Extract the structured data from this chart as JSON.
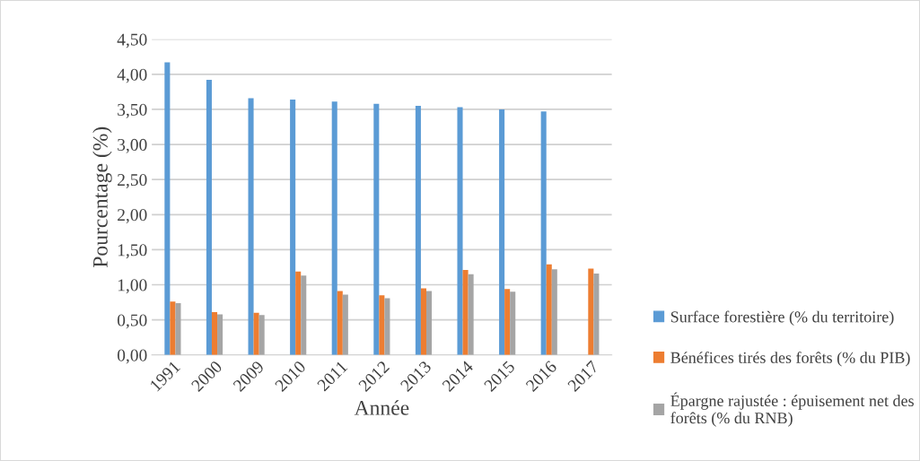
{
  "chart_data": {
    "type": "bar",
    "xlabel": "Année",
    "ylabel": "Pourcentage (%)",
    "categories": [
      "1991",
      "2000",
      "2009",
      "2010",
      "2011",
      "2012",
      "2013",
      "2014",
      "2015",
      "2016",
      "2017"
    ],
    "series": [
      {
        "name": "Surface forestière (% du territoire)",
        "color": "#5b9bd5",
        "values": [
          4.17,
          3.92,
          3.66,
          3.64,
          3.61,
          3.58,
          3.55,
          3.53,
          3.5,
          3.47,
          0
        ]
      },
      {
        "name": "Bénéfices tirés des forêts (% du PIB)",
        "color": "#ed7d31",
        "values": [
          0.76,
          0.61,
          0.6,
          1.19,
          0.91,
          0.85,
          0.95,
          1.21,
          0.94,
          1.29,
          1.23
        ]
      },
      {
        "name": "Épargne rajustée : épuisement net des forêts (% du RNB)",
        "color": "#a5a5a5",
        "values": [
          0.74,
          0.58,
          0.57,
          1.13,
          0.86,
          0.81,
          0.91,
          1.15,
          0.9,
          1.22,
          1.16
        ]
      }
    ],
    "ylim": [
      0,
      4.5
    ],
    "yticks": [
      {
        "value": 0,
        "label": "0,00"
      },
      {
        "value": 0.5,
        "label": "0,50"
      },
      {
        "value": 1,
        "label": "1,00"
      },
      {
        "value": 1.5,
        "label": "1,50"
      },
      {
        "value": 2,
        "label": "2,00"
      },
      {
        "value": 2.5,
        "label": "2,50"
      },
      {
        "value": 3,
        "label": "3,00"
      },
      {
        "value": 3.5,
        "label": "3,50"
      },
      {
        "value": 4,
        "label": "4,00"
      },
      {
        "value": 4.5,
        "label": "4,50"
      }
    ],
    "grid": "y",
    "legend": "right"
  }
}
